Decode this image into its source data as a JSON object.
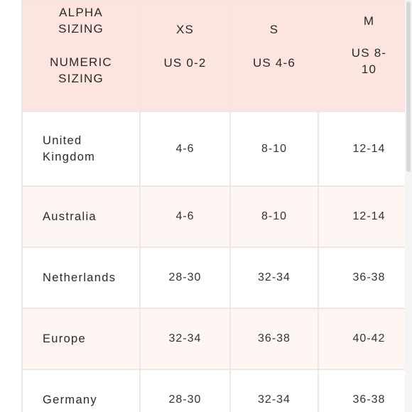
{
  "header": {
    "alpha_label": "ALPHA\nSIZING",
    "numeric_label": "NUMERIC\nSIZING",
    "columns": [
      {
        "alpha": "XS",
        "numeric": "US 0-2"
      },
      {
        "alpha": "S",
        "numeric": "US 4-6"
      },
      {
        "alpha": "M",
        "numeric": "US 8-\n10"
      }
    ]
  },
  "rows": [
    {
      "country": "United\nKingdom",
      "values": [
        "4-6",
        "8-10",
        "12-14"
      ]
    },
    {
      "country": "Australia",
      "values": [
        "4-6",
        "8-10",
        "12-14"
      ]
    },
    {
      "country": "Netherlands",
      "values": [
        "28-30",
        "32-34",
        "36-38"
      ]
    },
    {
      "country": "Europe",
      "values": [
        "32-34",
        "36-38",
        "40-42"
      ]
    },
    {
      "country": "Germany",
      "values": [
        "28-30",
        "32-34",
        "36-38"
      ]
    }
  ]
}
